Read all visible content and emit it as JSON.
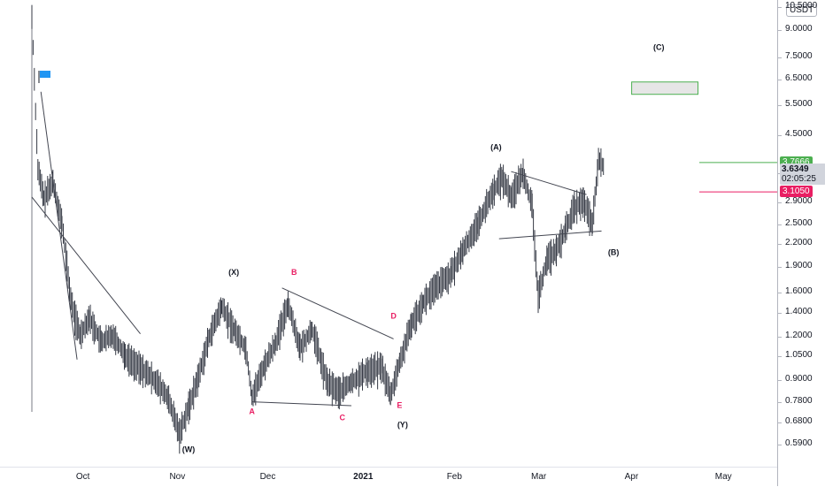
{
  "chart_data": {
    "type": "candlestick",
    "currency": "USDT",
    "y_scale": "log",
    "ylim": [
      0.53,
      10.6
    ],
    "price_ticks": [
      "10.5000",
      "9.0000",
      "7.5000",
      "6.5000",
      "5.5000",
      "4.5000",
      "3.5000",
      "2.9000",
      "2.5000",
      "2.2000",
      "1.9000",
      "1.6000",
      "1.4000",
      "1.2000",
      "1.0500",
      "0.9000",
      "0.7800",
      "0.6800",
      "0.5900"
    ],
    "time_ticks": [
      "Oct",
      "Nov",
      "Dec",
      "2021",
      "Feb",
      "Mar",
      "Apr",
      "May"
    ],
    "price_path": [
      [
        "2020-09-14",
        9.8
      ],
      [
        "2020-09-16",
        3.6
      ],
      [
        "2020-09-18",
        2.95
      ],
      [
        "2020-09-21",
        3.3
      ],
      [
        "2020-09-24",
        2.5
      ],
      [
        "2020-09-27",
        1.5
      ],
      [
        "2020-09-30",
        1.2
      ],
      [
        "2020-10-03",
        1.35
      ],
      [
        "2020-10-07",
        1.15
      ],
      [
        "2020-10-11",
        1.2
      ],
      [
        "2020-10-15",
        1.05
      ],
      [
        "2020-10-20",
        0.97
      ],
      [
        "2020-10-25",
        0.89
      ],
      [
        "2020-10-29",
        0.8
      ],
      [
        "2020-11-02",
        0.63
      ],
      [
        "2020-11-05",
        0.75
      ],
      [
        "2020-11-08",
        0.9
      ],
      [
        "2020-11-12",
        1.2
      ],
      [
        "2020-11-16",
        1.45
      ],
      [
        "2020-11-20",
        1.25
      ],
      [
        "2020-11-24",
        1.1
      ],
      [
        "2020-11-26",
        0.8
      ],
      [
        "2020-11-30",
        0.98
      ],
      [
        "2020-12-04",
        1.15
      ],
      [
        "2020-12-08",
        1.48
      ],
      [
        "2020-12-12",
        1.1
      ],
      [
        "2020-12-16",
        1.25
      ],
      [
        "2020-12-21",
        0.88
      ],
      [
        "2020-12-25",
        0.83
      ],
      [
        "2020-12-29",
        0.88
      ],
      [
        "2021-01-03",
        0.95
      ],
      [
        "2021-01-08",
        0.98
      ],
      [
        "2021-01-11",
        0.81
      ],
      [
        "2021-01-14",
        1.0
      ],
      [
        "2021-01-18",
        1.3
      ],
      [
        "2021-01-22",
        1.5
      ],
      [
        "2021-01-26",
        1.65
      ],
      [
        "2021-01-31",
        1.8
      ],
      [
        "2021-02-04",
        2.1
      ],
      [
        "2021-02-09",
        2.5
      ],
      [
        "2021-02-14",
        3.1
      ],
      [
        "2021-02-17",
        3.4
      ],
      [
        "2021-02-20",
        3.0
      ],
      [
        "2021-02-24",
        3.5
      ],
      [
        "2021-02-27",
        2.8
      ],
      [
        "2021-03-01",
        1.55
      ],
      [
        "2021-03-04",
        2.0
      ],
      [
        "2021-03-07",
        2.1
      ],
      [
        "2021-03-10",
        2.4
      ],
      [
        "2021-03-13",
        2.8
      ],
      [
        "2021-03-16",
        2.9
      ],
      [
        "2021-03-19",
        2.5
      ],
      [
        "2021-03-21",
        3.8
      ],
      [
        "2021-03-23",
        3.63
      ]
    ],
    "wave_labels": [
      {
        "text": "(W)",
        "date": "2020-11-05",
        "price": 0.56,
        "color": "#131722"
      },
      {
        "text": "(X)",
        "date": "2020-11-20",
        "price": 1.8,
        "color": "#131722"
      },
      {
        "text": "(Y)",
        "date": "2021-01-15",
        "price": 0.66,
        "color": "#131722"
      },
      {
        "text": "(A)",
        "date": "2021-02-15",
        "price": 4.1,
        "color": "#131722"
      },
      {
        "text": "(B)",
        "date": "2021-03-26",
        "price": 2.05,
        "color": "#131722"
      },
      {
        "text": "(C)",
        "date": "2021-04-10",
        "price": 7.9,
        "color": "#131722"
      },
      {
        "text": "A",
        "date": "2020-11-26",
        "price": 0.72,
        "color": "#e91e63"
      },
      {
        "text": "B",
        "date": "2020-12-10",
        "price": 1.8,
        "color": "#e91e63"
      },
      {
        "text": "C",
        "date": "2020-12-26",
        "price": 0.69,
        "color": "#e91e63"
      },
      {
        "text": "D",
        "date": "2021-01-12",
        "price": 1.35,
        "color": "#e91e63"
      },
      {
        "text": "E",
        "date": "2021-01-14",
        "price": 0.75,
        "color": "#e91e63"
      }
    ],
    "trendlines": [
      {
        "from": [
          "2020-09-17",
          6.0
        ],
        "to": [
          "2020-09-29",
          1.03
        ]
      },
      {
        "from": [
          "2020-09-14",
          3.0
        ],
        "to": [
          "2020-10-20",
          1.22
        ]
      },
      {
        "from": [
          "2020-11-26",
          0.78
        ],
        "to": [
          "2020-12-29",
          0.76
        ]
      },
      {
        "from": [
          "2020-12-06",
          1.65
        ],
        "to": [
          "2021-01-12",
          1.18
        ]
      },
      {
        "from": [
          "2021-02-20",
          3.55
        ],
        "to": [
          "2021-03-17",
          3.05
        ]
      },
      {
        "from": [
          "2021-02-16",
          2.28
        ],
        "to": [
          "2021-03-22",
          2.4
        ]
      }
    ],
    "target_box": {
      "from": "2021-04-01",
      "to": "2021-04-23",
      "low": 5.9,
      "high": 6.4
    },
    "horizontal_levels": [
      {
        "price": 3.7666,
        "label": "3.7666",
        "color": "#4caf50"
      },
      {
        "price": 3.105,
        "label": "3.1050",
        "color": "#e91e63"
      }
    ],
    "last_price": {
      "price": 3.6349,
      "label": "3.6349",
      "countdown": "02:05:25"
    },
    "colors": {
      "candles": "#363a45",
      "lines": "#434651",
      "text": "#131722",
      "pink": "#e91e63",
      "green": "#4caf50",
      "flag": "#2196f3"
    }
  }
}
